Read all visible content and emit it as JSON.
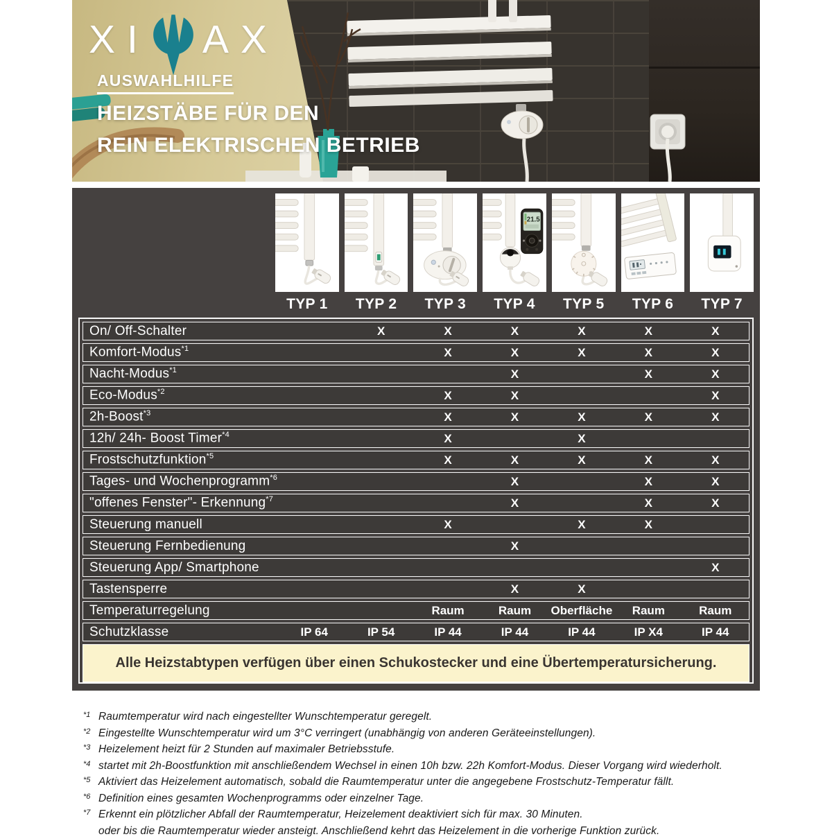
{
  "colors": {
    "teal": "#1a808e",
    "panel-bg": "#454140",
    "row-bg": "#3d3a38",
    "banner-bg": "#fbf3cc",
    "tile-dark": "#37332e"
  },
  "header": {
    "logo_left": "XI",
    "logo_right": "AX",
    "subtitle": "AUSWAHLHILFE",
    "title1": "HEIZSTÄBE FÜR DEN",
    "title2": "REIN ELEKTRISCHEN BETRIEB"
  },
  "products": {
    "typ4_display": "21.5"
  },
  "table": {
    "types": [
      "TYP 1",
      "TYP 2",
      "TYP 3",
      "TYP 4",
      "TYP 5",
      "TYP 6",
      "TYP 7"
    ],
    "rows": [
      {
        "label": "On/ Off-Schalter",
        "sup": "",
        "values": [
          "",
          "X",
          "X",
          "X",
          "X",
          "X",
          "X"
        ]
      },
      {
        "label": "Komfort-Modus",
        "sup": "*1",
        "values": [
          "",
          "",
          "X",
          "X",
          "X",
          "X",
          "X"
        ]
      },
      {
        "label": "Nacht-Modus",
        "sup": "*1",
        "values": [
          "",
          "",
          "",
          "X",
          "",
          "X",
          "X"
        ]
      },
      {
        "label": "Eco-Modus",
        "sup": "*2",
        "values": [
          "",
          "",
          "X",
          "X",
          "",
          "",
          "X"
        ]
      },
      {
        "label": "2h-Boost",
        "sup": "*3",
        "values": [
          "",
          "",
          "X",
          "X",
          "X",
          "X",
          "X"
        ]
      },
      {
        "label": "12h/ 24h- Boost Timer",
        "sup": "*4",
        "values": [
          "",
          "",
          "X",
          "",
          "X",
          "",
          ""
        ]
      },
      {
        "label": "Frostschutzfunktion",
        "sup": "*5",
        "values": [
          "",
          "",
          "X",
          "X",
          "X",
          "X",
          "X"
        ]
      },
      {
        "label": "Tages- und Wochenprogramm",
        "sup": "*6",
        "values": [
          "",
          "",
          "",
          "X",
          "",
          "X",
          "X"
        ]
      },
      {
        "label": "\"offenes Fenster\"- Erkennung",
        "sup": "*7",
        "values": [
          "",
          "",
          "",
          "X",
          "",
          "X",
          "X"
        ]
      },
      {
        "label": "Steuerung manuell",
        "sup": "",
        "values": [
          "",
          "",
          "X",
          "",
          "X",
          "X",
          ""
        ]
      },
      {
        "label": "Steuerung Fernbedienung",
        "sup": "",
        "values": [
          "",
          "",
          "",
          "X",
          "",
          "",
          ""
        ]
      },
      {
        "label": "Steuerung App/ Smartphone",
        "sup": "",
        "values": [
          "",
          "",
          "",
          "",
          "",
          "",
          "X"
        ]
      },
      {
        "label": "Tastensperre",
        "sup": "",
        "values": [
          "",
          "",
          "",
          "X",
          "X",
          "",
          ""
        ]
      },
      {
        "label": "Temperaturregelung",
        "sup": "",
        "values": [
          "",
          "",
          "Raum",
          "Raum",
          "Oberfläche",
          "Raum",
          "Raum"
        ]
      },
      {
        "label": "Schutzklasse",
        "sup": "",
        "values": [
          "IP 64",
          "IP 54",
          "IP 44",
          "IP 44",
          "IP 44",
          "IP X4",
          "IP 44"
        ]
      }
    ],
    "banner": "Alle Heizstabtypen verfügen über einen Schukostecker und eine Übertemperatursicherung."
  },
  "footnotes": [
    {
      "marker": "*1",
      "text": "Raumtemperatur wird nach eingestellter Wunschtemperatur geregelt."
    },
    {
      "marker": "*2",
      "text": "Eingestellte Wunschtemperatur wird um 3°C verringert (unabhängig von anderen Geräteeinstellungen)."
    },
    {
      "marker": "*3",
      "text": "Heizelement heizt für 2 Stunden auf maximaler Betriebsstufe."
    },
    {
      "marker": "*4",
      "text": "startet mit 2h-Boostfunktion mit anschließendem Wechsel in einen 10h bzw. 22h Komfort-Modus. Dieser Vorgang wird wiederholt."
    },
    {
      "marker": "*5",
      "text": "Aktiviert das Heizelement automatisch, sobald die Raumtemperatur unter die angegebene Frostschutz-Temperatur fällt."
    },
    {
      "marker": "*6",
      "text": "Definition eines gesamten Wochenprogramms oder einzelner Tage."
    },
    {
      "marker": "*7",
      "text": "Erkennt ein plötzlicher Abfall der Raumtemperatur, Heizelement deaktiviert sich für max. 30 Minuten."
    },
    {
      "marker": "",
      "text": "oder bis die Raumtemperatur wieder ansteigt. Anschließend kehrt das Heizelement in die vorherige Funktion zurück."
    }
  ]
}
